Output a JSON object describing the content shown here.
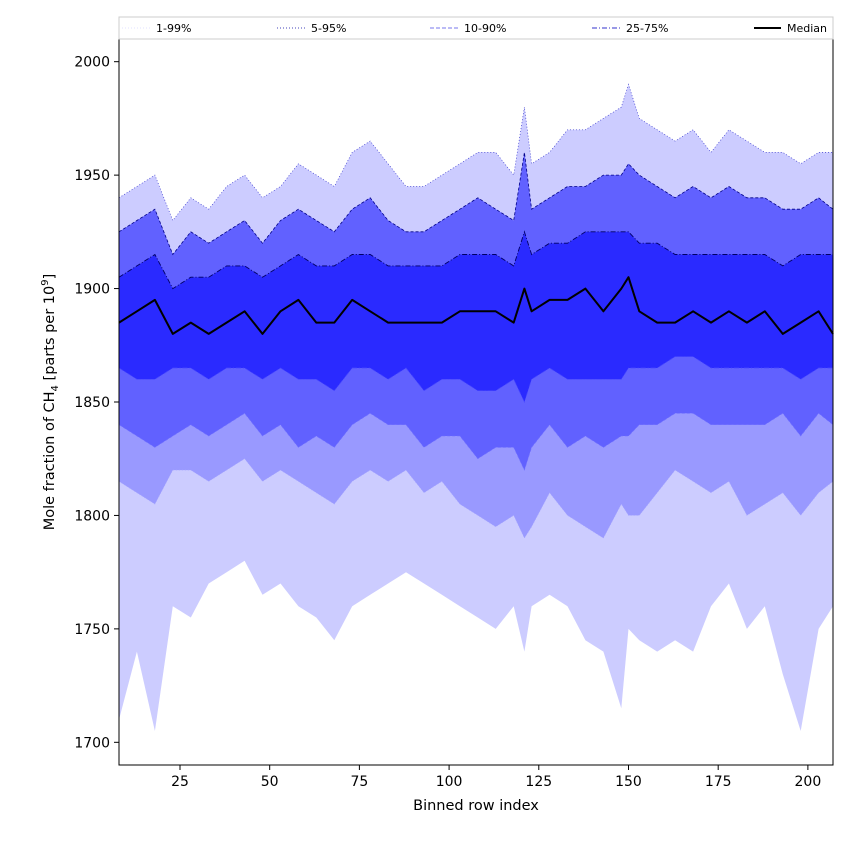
{
  "chart_data": {
    "type": "area",
    "title": "",
    "xlabel": "Binned row index",
    "ylabel_main": "Mole fraction of CH",
    "ylabel_sub": "4",
    "ylabel_units_pre": " [parts per 10",
    "ylabel_units_sup": "9",
    "ylabel_units_post": "]",
    "xlim": [
      8,
      207
    ],
    "ylim": [
      1690,
      2010
    ],
    "xticks": [
      25,
      50,
      75,
      100,
      125,
      150,
      175,
      200
    ],
    "yticks": [
      1700,
      1750,
      1800,
      1850,
      1900,
      1950,
      2000
    ],
    "grid": false,
    "legend": {
      "placement": "top",
      "entries": [
        {
          "label": "1-99%",
          "color": "#e0e0ff",
          "style": "dotted"
        },
        {
          "label": "5-95%",
          "color": "#4444bb",
          "style": "dotted"
        },
        {
          "label": "10-90%",
          "color": "#7777ee",
          "style": "dashed"
        },
        {
          "label": "25-75%",
          "color": "#3333cc",
          "style": "dashdot"
        },
        {
          "label": "Median",
          "color": "#000000",
          "style": "solid"
        }
      ]
    },
    "fill_colors": [
      "#ccccff",
      "#9999ff",
      "#6161ff",
      "#2a2aff"
    ],
    "x": [
      8,
      13,
      18,
      23,
      28,
      33,
      38,
      43,
      48,
      53,
      58,
      63,
      68,
      73,
      78,
      83,
      88,
      93,
      98,
      103,
      108,
      113,
      118,
      121,
      123,
      128,
      133,
      138,
      143,
      148,
      150,
      153,
      158,
      163,
      168,
      173,
      178,
      183,
      188,
      193,
      198,
      203,
      207
    ],
    "series": [
      {
        "name": "1-99%",
        "lower": [
          1710,
          1740,
          1705,
          1760,
          1755,
          1770,
          1775,
          1780,
          1765,
          1770,
          1760,
          1755,
          1745,
          1760,
          1765,
          1770,
          1775,
          1770,
          1765,
          1760,
          1755,
          1750,
          1760,
          1740,
          1760,
          1765,
          1760,
          1745,
          1740,
          1715,
          1750,
          1745,
          1740,
          1745,
          1740,
          1760,
          1770,
          1750,
          1760,
          1730,
          1705,
          1750,
          1760
        ],
        "upper": [
          1940,
          1945,
          1950,
          1930,
          1940,
          1935,
          1945,
          1950,
          1940,
          1945,
          1955,
          1950,
          1945,
          1960,
          1965,
          1955,
          1945,
          1945,
          1950,
          1955,
          1960,
          1960,
          1950,
          1980,
          1955,
          1960,
          1970,
          1970,
          1975,
          1980,
          1990,
          1975,
          1970,
          1965,
          1970,
          1960,
          1970,
          1965,
          1960,
          1960,
          1955,
          1960,
          1960
        ]
      },
      {
        "name": "5-95%",
        "lower": [
          1815,
          1810,
          1805,
          1820,
          1820,
          1815,
          1820,
          1825,
          1815,
          1820,
          1815,
          1810,
          1805,
          1815,
          1820,
          1815,
          1820,
          1810,
          1815,
          1805,
          1800,
          1795,
          1800,
          1790,
          1795,
          1810,
          1800,
          1795,
          1790,
          1805,
          1800,
          1800,
          1810,
          1820,
          1815,
          1810,
          1815,
          1800,
          1805,
          1810,
          1800,
          1810,
          1815
        ]
      },
      {
        "name": "10-90%",
        "lower": [
          1840,
          1835,
          1830,
          1835,
          1840,
          1835,
          1840,
          1845,
          1835,
          1840,
          1830,
          1835,
          1830,
          1840,
          1845,
          1840,
          1840,
          1830,
          1835,
          1835,
          1825,
          1830,
          1830,
          1820,
          1830,
          1840,
          1830,
          1835,
          1830,
          1835,
          1835,
          1840,
          1840,
          1845,
          1845,
          1840,
          1840,
          1840,
          1840,
          1845,
          1835,
          1845,
          1840
        ],
        "upper": [
          1925,
          1930,
          1935,
          1915,
          1925,
          1920,
          1925,
          1930,
          1920,
          1930,
          1935,
          1930,
          1925,
          1935,
          1940,
          1930,
          1925,
          1925,
          1930,
          1935,
          1940,
          1935,
          1930,
          1960,
          1935,
          1940,
          1945,
          1945,
          1950,
          1950,
          1955,
          1950,
          1945,
          1940,
          1945,
          1940,
          1945,
          1940,
          1940,
          1935,
          1935,
          1940,
          1935
        ]
      },
      {
        "name": "25-75%",
        "lower": [
          1865,
          1860,
          1860,
          1865,
          1865,
          1860,
          1865,
          1865,
          1860,
          1865,
          1860,
          1860,
          1855,
          1865,
          1865,
          1860,
          1865,
          1855,
          1860,
          1860,
          1855,
          1855,
          1860,
          1850,
          1860,
          1865,
          1860,
          1860,
          1860,
          1860,
          1865,
          1865,
          1865,
          1870,
          1870,
          1865,
          1865,
          1865,
          1865,
          1865,
          1860,
          1865,
          1865
        ],
        "upper": [
          1905,
          1910,
          1915,
          1900,
          1905,
          1905,
          1910,
          1910,
          1905,
          1910,
          1915,
          1910,
          1910,
          1915,
          1915,
          1910,
          1910,
          1910,
          1910,
          1915,
          1915,
          1915,
          1910,
          1925,
          1915,
          1920,
          1920,
          1925,
          1925,
          1925,
          1925,
          1920,
          1920,
          1915,
          1915,
          1915,
          1915,
          1915,
          1915,
          1910,
          1915,
          1915,
          1915
        ]
      },
      {
        "name": "Median",
        "values": [
          1885,
          1890,
          1895,
          1880,
          1885,
          1880,
          1885,
          1890,
          1880,
          1890,
          1895,
          1885,
          1885,
          1895,
          1890,
          1885,
          1885,
          1885,
          1885,
          1890,
          1890,
          1890,
          1885,
          1900,
          1890,
          1895,
          1895,
          1900,
          1890,
          1900,
          1905,
          1890,
          1885,
          1885,
          1890,
          1885,
          1890,
          1885,
          1890,
          1880,
          1885,
          1890,
          1880
        ]
      }
    ]
  }
}
